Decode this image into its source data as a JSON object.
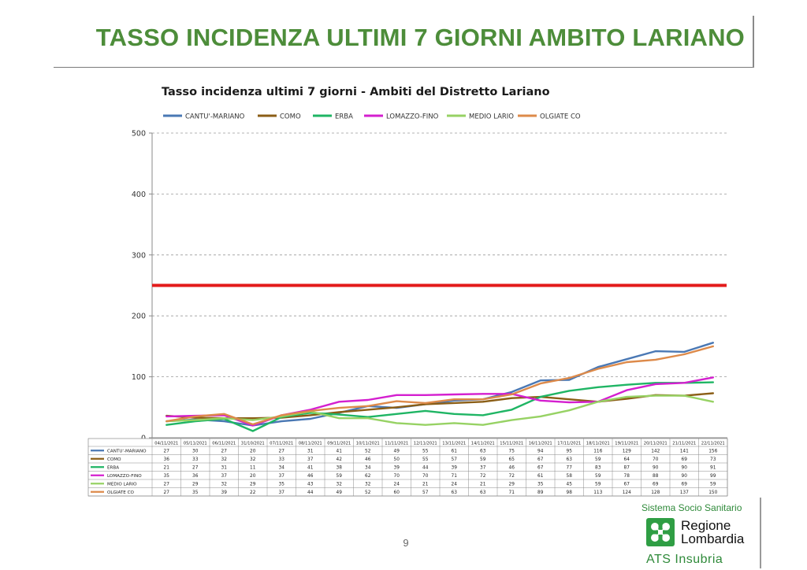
{
  "slide": {
    "title": "TASSO INCIDENZA ULTIMI 7 GIORNI AMBITO LARIANO",
    "page_number": "9"
  },
  "brand": {
    "caption": "Sistema Socio Sanitario",
    "region_line1": "Regione",
    "region_line2": "Lombardia",
    "unit": "ATS Insubria"
  },
  "chart_data": {
    "type": "line",
    "title": "Tasso incidenza ultimi 7 giorni - Ambiti del Distretto Lariano",
    "xlabel": "",
    "ylabel": "",
    "ylim": [
      0,
      500
    ],
    "yticks": [
      0,
      100,
      200,
      300,
      400,
      500
    ],
    "grid": true,
    "legend_position": "top",
    "threshold": {
      "value": 250,
      "color": "#e31b1b"
    },
    "categories": [
      "04/11/2021",
      "05/11/2021",
      "06/11/2021",
      "31/10/2021",
      "07/11/2021",
      "08/11/2021",
      "09/11/2021",
      "10/11/2021",
      "11/11/2021",
      "12/11/2021",
      "13/11/2021",
      "14/11/2021",
      "15/11/2021",
      "16/11/2021",
      "17/11/2021",
      "18/11/2021",
      "19/11/2021",
      "20/11/2021",
      "21/11/2021",
      "22/11/2021"
    ],
    "series": [
      {
        "name": "CANTU'-MARIANO",
        "color": "#4a78b4",
        "values": [
          27,
          30,
          27,
          20,
          27,
          31,
          41,
          52,
          49,
          55,
          61,
          63,
          75,
          94,
          95,
          116,
          129,
          142,
          141,
          156
        ]
      },
      {
        "name": "COMO",
        "color": "#8b5e16",
        "values": [
          36,
          33,
          32,
          32,
          33,
          37,
          42,
          46,
          50,
          55,
          57,
          59,
          65,
          67,
          63,
          59,
          64,
          70,
          69,
          73
        ]
      },
      {
        "name": "ERBA",
        "color": "#1fb564",
        "values": [
          21,
          27,
          31,
          11,
          34,
          41,
          38,
          34,
          39,
          44,
          39,
          37,
          46,
          67,
          77,
          83,
          87,
          90,
          90,
          91
        ]
      },
      {
        "name": "LOMAZZO-FINO",
        "color": "#d41fcf",
        "values": [
          35,
          36,
          37,
          20,
          37,
          46,
          59,
          62,
          70,
          70,
          71,
          72,
          72,
          61,
          58,
          59,
          78,
          88,
          90,
          99
        ]
      },
      {
        "name": "MEDIO LARIO",
        "color": "#97d264",
        "values": [
          27,
          29,
          32,
          29,
          35,
          43,
          32,
          32,
          24,
          21,
          24,
          21,
          29,
          35,
          45,
          59,
          67,
          69,
          69,
          59
        ]
      },
      {
        "name": "OLGIATE CO",
        "color": "#dd8a4a",
        "values": [
          27,
          35,
          39,
          22,
          37,
          44,
          49,
          52,
          60,
          57,
          63,
          63,
          71,
          89,
          98,
          113,
          124,
          128,
          137,
          150
        ]
      }
    ]
  }
}
